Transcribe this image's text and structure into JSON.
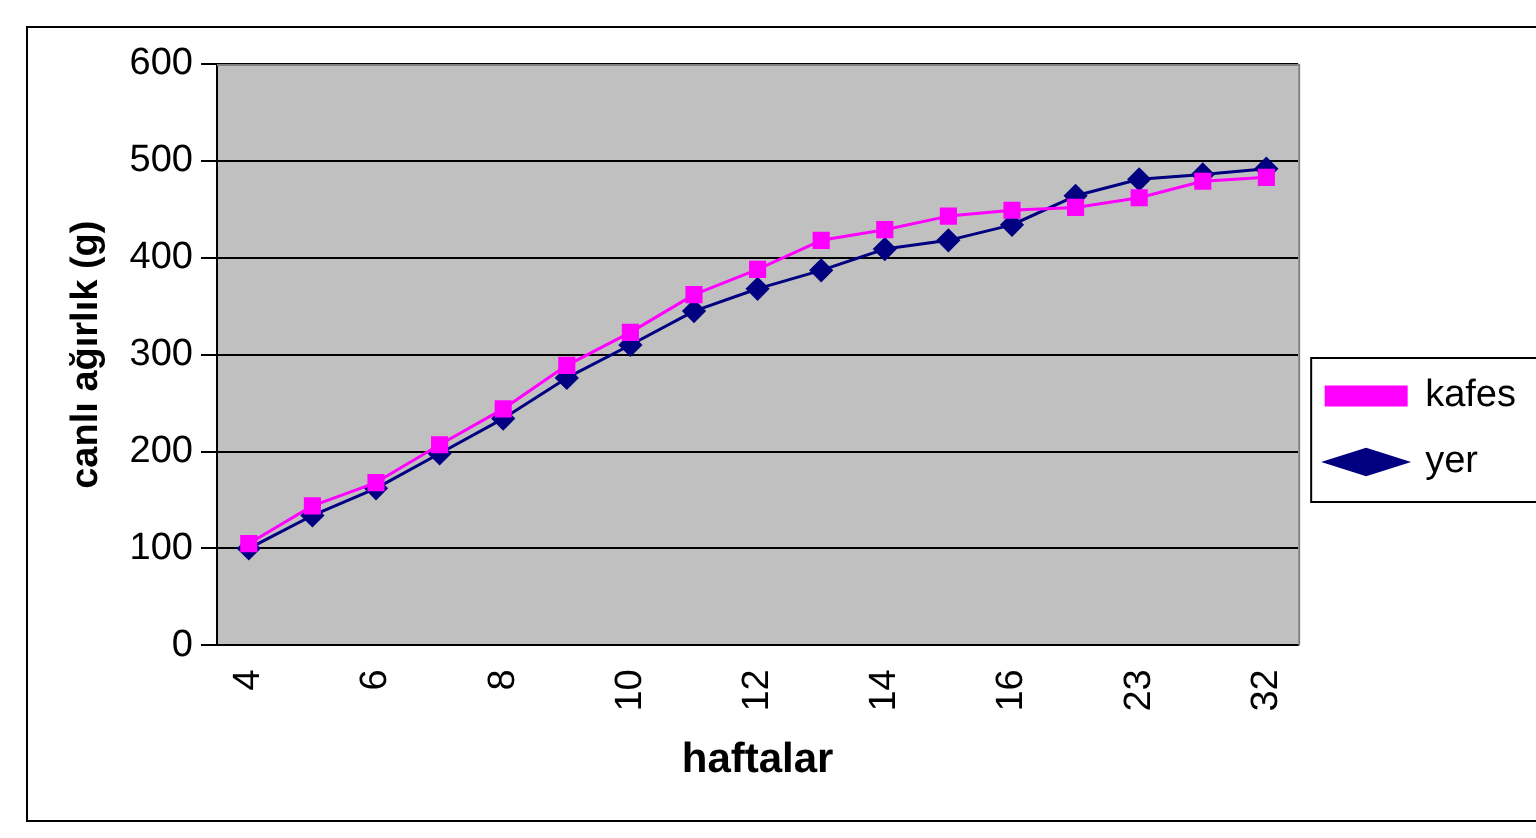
{
  "chart_data": {
    "type": "line",
    "xlabel": "haftalar",
    "ylabel": "canlı ağırlık (g)",
    "categories": [
      "4",
      null,
      "6",
      null,
      "8",
      null,
      "10",
      null,
      "12",
      null,
      "14",
      null,
      "16",
      null,
      "23",
      null,
      "32"
    ],
    "series": [
      {
        "name": "yer",
        "color": "#000080",
        "marker": "diamond",
        "values": [
          100,
          134,
          162,
          198,
          234,
          276,
          310,
          345,
          368,
          387,
          409,
          418,
          434,
          464,
          481,
          486,
          492
        ]
      },
      {
        "name": "kafes",
        "color": "#ff00ff",
        "marker": "square",
        "values": [
          105,
          144,
          168,
          207,
          244,
          289,
          323,
          362,
          388,
          418,
          429,
          443,
          449,
          452,
          462,
          479,
          483
        ]
      }
    ],
    "ylim": [
      0,
      600
    ],
    "yticks": [
      0,
      100,
      200,
      300,
      400,
      500,
      600
    ],
    "grid": "y",
    "legend": "right",
    "line_style": "solid"
  }
}
